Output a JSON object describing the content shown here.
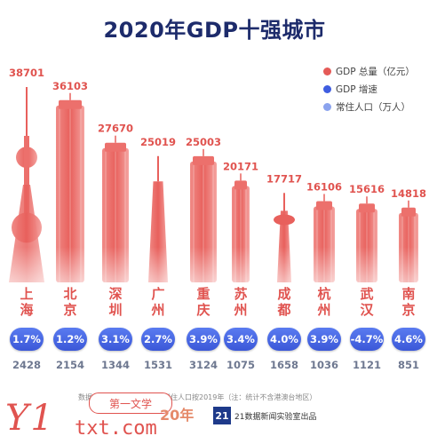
{
  "title": "2020年GDP十强城市",
  "legend": [
    {
      "label": "GDP 总量（亿元）",
      "color": "#e55a57"
    },
    {
      "label": "GDP 增速",
      "color": "#3f5de0"
    },
    {
      "label": "常住人口（万人）",
      "color": "#8ba3ee"
    }
  ],
  "chart_data": {
    "type": "bar",
    "title": "2020年GDP十强城市",
    "categories": [
      "上海",
      "北京",
      "深圳",
      "广州",
      "重庆",
      "苏州",
      "成都",
      "杭州",
      "武汉",
      "南京"
    ],
    "series": [
      {
        "name": "GDP 总量（亿元）",
        "values": [
          38701,
          36103,
          27670,
          25019,
          25003,
          20171,
          17717,
          16106,
          15616,
          14818
        ]
      },
      {
        "name": "GDP 增速",
        "values": [
          "1.7%",
          "1.2%",
          "3.1%",
          "2.7%",
          "3.9%",
          "3.4%",
          "4.0%",
          "3.9%",
          "-4.7%",
          "4.6%"
        ]
      },
      {
        "name": "常住人口（万人）",
        "values": [
          2428,
          2154,
          1344,
          1531,
          3124,
          1075,
          1658,
          1036,
          1121,
          851
        ]
      }
    ],
    "ylim": [
      0,
      38701
    ],
    "legend_position": "top-right"
  },
  "city_labels": [
    [
      "上",
      "海"
    ],
    [
      "北",
      "京"
    ],
    [
      "深",
      "圳"
    ],
    [
      "广",
      "州"
    ],
    [
      "重",
      "庆"
    ],
    [
      "苏",
      "州"
    ],
    [
      "成",
      "都"
    ],
    [
      "杭",
      "州"
    ],
    [
      "武",
      "汉"
    ],
    [
      "南",
      "京"
    ]
  ],
  "footer": {
    "source": "数据来源：各地统计公报，常住人口按2019年（注：统计不含港澳台地区）",
    "brand_logo": "21",
    "brand_text": "21数据新闻实验室出品"
  },
  "watermark": {
    "left": "Y1",
    "badge": "第一文学",
    "sub": "20年",
    "url": "txt.com"
  }
}
